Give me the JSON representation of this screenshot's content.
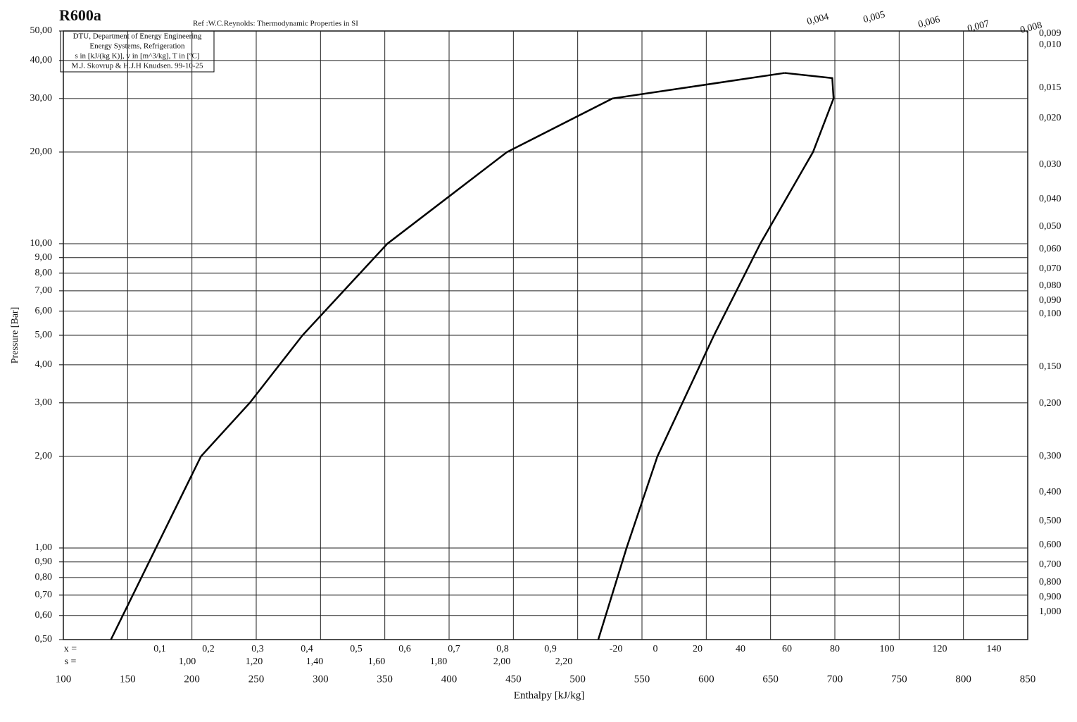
{
  "chart_data": {
    "type": "line",
    "title": "R600a",
    "subtitle": "Ref :W.C.Reynolds: Thermodynamic Properties in SI",
    "info_lines": [
      "DTU, Department of Energy Engineering",
      "Energy Systems, Refrigeration",
      "s in [kJ/(kg K)], v in [m^3/kg], T in [ºC]",
      "M.J. Skovrup & H.J.H Knudsen. 99-10-25"
    ],
    "xlabel": "Enthalpy [kJ/kg]",
    "ylabel": "Pressure [Bar]",
    "log_y": true,
    "grid": true,
    "xlim": [
      100,
      850
    ],
    "xticks": [
      100,
      150,
      200,
      250,
      300,
      350,
      400,
      450,
      500,
      550,
      600,
      650,
      700,
      750,
      800,
      850
    ],
    "ylim": [
      0.5,
      50
    ],
    "yticks": [
      {
        "value": 50,
        "label": "50,00"
      },
      {
        "value": 40,
        "label": "40,00"
      },
      {
        "value": 30,
        "label": "30,00"
      },
      {
        "value": 20,
        "label": "20,00"
      },
      {
        "value": 10,
        "label": "10,00"
      },
      {
        "value": 9,
        "label": "9,00"
      },
      {
        "value": 8,
        "label": "8,00"
      },
      {
        "value": 7,
        "label": "7,00"
      },
      {
        "value": 6,
        "label": "6,00"
      },
      {
        "value": 5,
        "label": "5,00"
      },
      {
        "value": 4,
        "label": "4,00"
      },
      {
        "value": 3,
        "label": "3,00"
      },
      {
        "value": 2,
        "label": "2,00"
      },
      {
        "value": 1,
        "label": "1,00"
      },
      {
        "value": 0.9,
        "label": "0,90"
      },
      {
        "value": 0.8,
        "label": "0,80"
      },
      {
        "value": 0.7,
        "label": "0,70"
      },
      {
        "value": 0.6,
        "label": "0,60"
      },
      {
        "value": 0.5,
        "label": "0,50"
      }
    ],
    "series": [
      {
        "color": "#000000",
        "x": [
          137,
          172,
          207,
          245,
          286,
          352,
          445,
          527,
          661
        ],
        "values": [
          0.5,
          1,
          2,
          3,
          5,
          10,
          20,
          30,
          36.4
        ]
      },
      {
        "color": "#000000",
        "x": [
          516,
          538,
          562,
          606,
          642,
          683,
          699,
          698,
          661
        ],
        "values": [
          0.5,
          1,
          2,
          5,
          10,
          20,
          30,
          35,
          36.4
        ]
      }
    ],
    "x_row_label": "x =",
    "x_row": [
      "0,1",
      "0,2",
      "0,3",
      "0,4",
      "0,5",
      "0,6",
      "0,7",
      "0,8",
      "0,9"
    ],
    "s_row_label": "s =",
    "s_row": [
      "1,00",
      "1,20",
      "1,40",
      "1,60",
      "1,80",
      "2,00",
      "2,20"
    ],
    "t_row": [
      "-20",
      "0",
      "20",
      "40",
      "60",
      "80",
      "100",
      "120",
      "140"
    ],
    "v_top_labels": [
      "0,004",
      "0,005",
      "0,006",
      "0,007",
      "0,008"
    ],
    "v_right_labels": [
      "0,009",
      "0,010",
      "0,015",
      "0,020",
      "0,030",
      "0,040",
      "0,050",
      "0,060",
      "0,070",
      "0,080",
      "0,090",
      "0,100",
      "0,150",
      "0,200",
      "0,300",
      "0,400",
      "0,500",
      "0,600",
      "0,700",
      "0,800",
      "0,900",
      "1,000"
    ]
  }
}
